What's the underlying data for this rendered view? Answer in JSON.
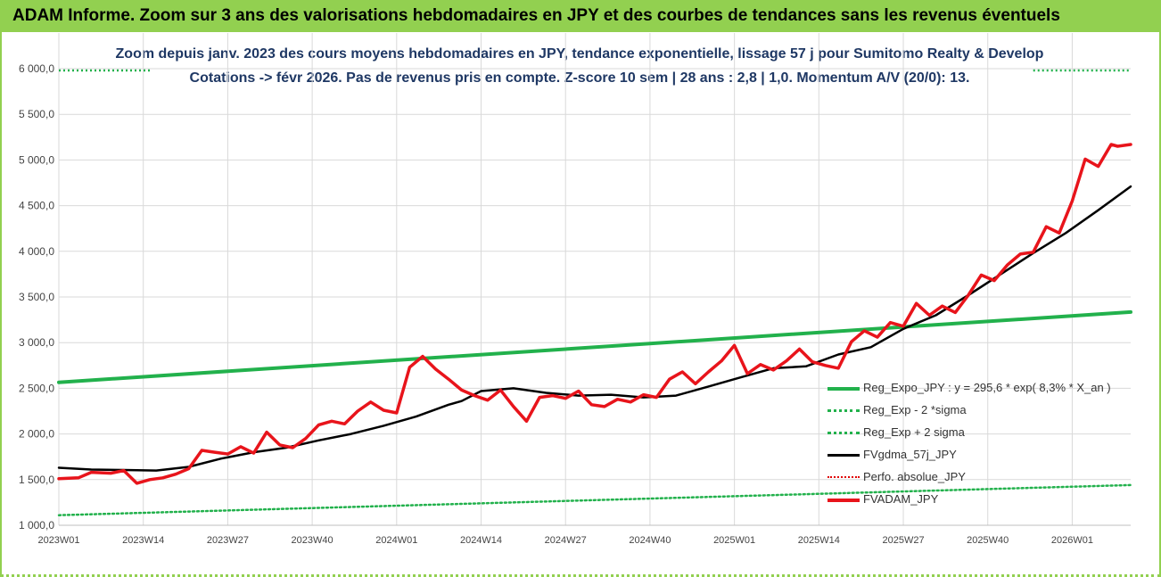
{
  "header": {
    "banner_title": "ADAM Informe. Zoom sur 3 ans des valorisations hebdomadaires en JPY et des courbes de tendances sans les revenus éventuels"
  },
  "colors": {
    "banner_bg": "#92d050",
    "title_color": "#1f3864",
    "reg_expo": "#22b14c",
    "sigma": "#22b14c",
    "fvgdma": "#000000",
    "perfo": "#e00000",
    "fvadam": "#e8141b"
  },
  "chart_data": {
    "type": "line",
    "title_line1": "Zoom depuis janv. 2023 des cours moyens hebdomadaires en JPY, tendance exponentielle, lissage 57 j pour Sumitomo Realty & Develop",
    "title_line2": "Cotations -> févr 2026. Pas de revenus pris en compte. Z-score 10 sem | 28 ans : 2,8 | 1,0. Momentum A/V (20/0): 13.",
    "ylim": [
      1000,
      6000
    ],
    "y_ticks": [
      "1 000,0",
      "1 500,0",
      "2 000,0",
      "2 500,0",
      "3 000,0",
      "3 500,0",
      "4 000,0",
      "4 500,0",
      "5 000,0",
      "5 500,0",
      "6 000,0"
    ],
    "x_ticks": [
      "2023W01",
      "2023W14",
      "2023W27",
      "2023W40",
      "2024W01",
      "2024W14",
      "2024W27",
      "2024W40",
      "2025W01",
      "2025W14",
      "2025W27",
      "2025W40",
      "2026W01"
    ],
    "week_count": 165,
    "legend": [
      {
        "key": "reg_expo",
        "label": "Reg_Expo_JPY : y = 295,6 * exp( 8,3% *  X_an )"
      },
      {
        "key": "sigma_minus",
        "label": "Reg_Exp - 2 *sigma"
      },
      {
        "key": "sigma_plus",
        "label": "Reg_Exp + 2 sigma"
      },
      {
        "key": "fvgdma",
        "label": "FVgdma_57j_JPY"
      },
      {
        "key": "perfo",
        "label": "Perfo. absolue_JPY"
      },
      {
        "key": "fvadam",
        "label": "FVADAM_JPY"
      }
    ],
    "series": [
      {
        "name": "Reg_Expo_JPY",
        "x": [
          0,
          165
        ],
        "values": [
          2565,
          3335
        ]
      },
      {
        "name": "Reg_Exp - 2 *sigma",
        "x": [
          0,
          165
        ],
        "values": [
          1110,
          1440
        ]
      },
      {
        "name": "Reg_Exp + 2 sigma",
        "x": [
          0,
          14,
          150,
          165
        ],
        "values": [
          5980,
          5980,
          5980,
          5980
        ],
        "note": "segments visible at top edges only"
      },
      {
        "name": "FVgdma_57j_JPY",
        "x": [
          0,
          5,
          10,
          15,
          20,
          25,
          30,
          35,
          40,
          45,
          50,
          55,
          60,
          62,
          65,
          70,
          75,
          80,
          85,
          90,
          95,
          100,
          105,
          110,
          115,
          120,
          125,
          130,
          135,
          140,
          145,
          150,
          155,
          160,
          165
        ],
        "values": [
          1630,
          1610,
          1605,
          1600,
          1640,
          1730,
          1800,
          1850,
          1930,
          2000,
          2090,
          2190,
          2320,
          2360,
          2470,
          2500,
          2450,
          2420,
          2430,
          2400,
          2420,
          2520,
          2620,
          2720,
          2740,
          2870,
          2950,
          3150,
          3300,
          3520,
          3750,
          3980,
          4200,
          4450,
          4710
        ]
      },
      {
        "name": "FVADAM_JPY",
        "x": [
          0,
          3,
          5,
          8,
          10,
          12,
          14,
          16,
          18,
          20,
          22,
          24,
          26,
          28,
          30,
          32,
          34,
          36,
          38,
          40,
          42,
          44,
          46,
          48,
          50,
          52,
          54,
          56,
          58,
          60,
          62,
          64,
          66,
          68,
          70,
          72,
          74,
          76,
          78,
          80,
          82,
          84,
          86,
          88,
          90,
          92,
          94,
          96,
          98,
          100,
          102,
          104,
          106,
          108,
          110,
          112,
          114,
          116,
          118,
          120,
          122,
          124,
          126,
          128,
          130,
          132,
          134,
          136,
          138,
          140,
          142,
          144,
          146,
          148,
          150,
          152,
          154,
          156,
          158,
          160,
          162,
          163,
          165
        ],
        "values": [
          1510,
          1520,
          1580,
          1570,
          1600,
          1460,
          1500,
          1520,
          1560,
          1620,
          1820,
          1800,
          1780,
          1860,
          1790,
          2020,
          1880,
          1850,
          1950,
          2100,
          2140,
          2110,
          2250,
          2350,
          2260,
          2230,
          2730,
          2850,
          2710,
          2600,
          2480,
          2420,
          2370,
          2480,
          2300,
          2140,
          2400,
          2420,
          2390,
          2470,
          2320,
          2300,
          2380,
          2350,
          2430,
          2400,
          2600,
          2680,
          2550,
          2680,
          2800,
          2970,
          2660,
          2760,
          2700,
          2800,
          2930,
          2790,
          2750,
          2720,
          3010,
          3130,
          3060,
          3220,
          3180,
          3430,
          3300,
          3400,
          3330,
          3520,
          3740,
          3680,
          3850,
          3970,
          3990,
          4270,
          4200,
          4550,
          5010,
          4930,
          5170,
          5150,
          5170
        ]
      }
    ]
  }
}
